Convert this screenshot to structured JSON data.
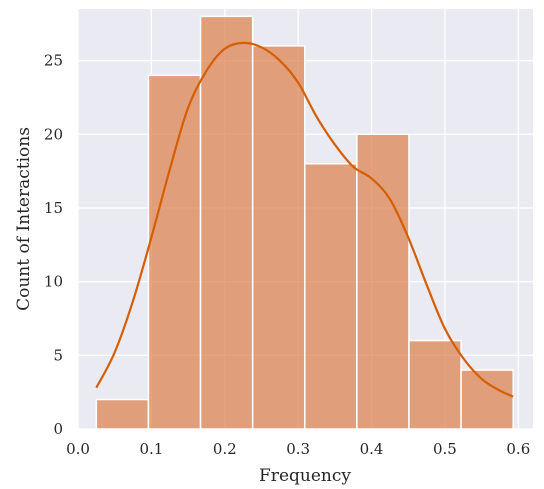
{
  "chart_data": {
    "type": "bar",
    "subtype": "histogram-with-kde",
    "title": "",
    "xlabel": "Frequency",
    "ylabel": "Count of Interactions",
    "xlim": [
      0.0,
      0.62
    ],
    "ylim": [
      0,
      28.5
    ],
    "xticks": [
      0.0,
      0.1,
      0.2,
      0.3,
      0.4,
      0.5,
      0.6
    ],
    "xtick_labels": [
      "0.0",
      "0.1",
      "0.2",
      "0.3",
      "0.4",
      "0.5",
      "0.6"
    ],
    "yticks": [
      0,
      5,
      10,
      15,
      20,
      25
    ],
    "ytick_labels": [
      "0",
      "5",
      "10",
      "15",
      "20",
      "25"
    ],
    "grid": true,
    "background_color": "#eaeaf2",
    "bar_color": "#dd8452",
    "bar_opacity": 0.75,
    "line_color": "#d55e00",
    "bins": [
      {
        "x0": 0.025,
        "x1": 0.096,
        "count": 2
      },
      {
        "x0": 0.096,
        "x1": 0.167,
        "count": 24
      },
      {
        "x0": 0.167,
        "x1": 0.238,
        "count": 28
      },
      {
        "x0": 0.238,
        "x1": 0.309,
        "count": 26
      },
      {
        "x0": 0.309,
        "x1": 0.38,
        "count": 18
      },
      {
        "x0": 0.38,
        "x1": 0.451,
        "count": 20
      },
      {
        "x0": 0.451,
        "x1": 0.522,
        "count": 6
      },
      {
        "x0": 0.522,
        "x1": 0.593,
        "count": 4
      }
    ],
    "kde": {
      "x": [
        0.025,
        0.05,
        0.075,
        0.1,
        0.125,
        0.15,
        0.175,
        0.2,
        0.225,
        0.25,
        0.275,
        0.3,
        0.325,
        0.35,
        0.375,
        0.4,
        0.425,
        0.45,
        0.475,
        0.5,
        0.525,
        0.55,
        0.575,
        0.593
      ],
      "y": [
        2.8,
        5.2,
        8.7,
        13.0,
        17.6,
        21.8,
        24.3,
        25.8,
        26.2,
        25.9,
        25.0,
        23.5,
        21.2,
        19.3,
        17.8,
        17.0,
        15.6,
        13.0,
        9.8,
        6.8,
        4.8,
        3.4,
        2.6,
        2.2
      ]
    }
  }
}
